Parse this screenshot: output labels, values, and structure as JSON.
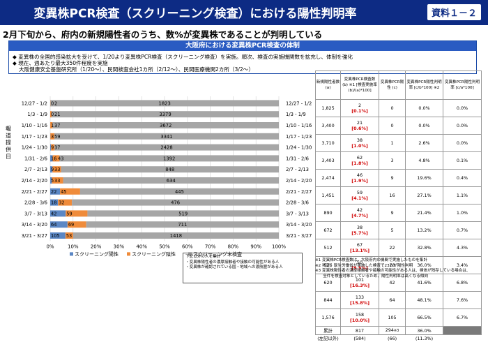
{
  "header": {
    "title": "変異株PCR検査（スクリーニング検査）における陽性判明率",
    "badge": "資料１－２"
  },
  "subheading": "2月下旬から、府内の新規陽性者のうち、数%が変異株であることが判明している",
  "system_box": {
    "title": "大阪府における変異株PCR検査の体制",
    "line1": "◆ 変異株の全国的感染拡大を受けて、1/20より変異株PCR検査（スクリーニング検査）を実施。順次、検査の実施機関数を拡充し、体制を強化",
    "line2": "◆ 現在、週あたり最大350件程度を実施",
    "line3": "大阪健康安全基盤研究所（1/20～）、民間検査会社1カ所（2/12～）、民間医療機関2カ所（3/2～）"
  },
  "side_label": "報道提供日",
  "chart_data": {
    "type": "bar",
    "orientation": "horizontal",
    "stacked": "percent",
    "categories": [
      "12/27 - 1/2",
      "1/3 - 1/9",
      "1/10 - 1/16",
      "1/17 - 1/23",
      "1/24 - 1/30",
      "1/31 - 2/6",
      "2/7 - 2/13",
      "2/14 - 2/20",
      "2/21 - 2/27",
      "2/28 - 3/6",
      "3/7 - 3/13",
      "3/14 - 3/20",
      "3/21 - 3/27"
    ],
    "right_categories": [
      "12/27 - 1/2",
      "1/3 - 1/9",
      "1/10 - 1/16",
      "1/17 - 1/23",
      "1/24 - 1/30",
      "1/31 - 2/6",
      "2/7 - 2/13",
      "2/14 - 2/20",
      "2/21 - 2/27",
      "2/28 - 3/6",
      "3/7 - 3/13",
      "3/14 - 3/20",
      "3/21 - 3/27"
    ],
    "series": [
      {
        "name": "スクリーニング陽性",
        "color": "#5b87c4",
        "values": [
          0,
          0,
          1,
          3,
          9,
          16,
          9,
          5,
          22,
          18,
          42,
          64,
          105
        ]
      },
      {
        "name": "スクリーニング陰性",
        "color": "#ef8b3a",
        "values": [
          2,
          21,
          37,
          59,
          37,
          43,
          33,
          33,
          45,
          32,
          59,
          69,
          53
        ]
      },
      {
        "name": "スクリーニング未検査",
        "color": "#a6a6a6",
        "values": [
          1823,
          3379,
          3672,
          3341,
          2428,
          1392,
          848,
          634,
          445,
          476,
          519,
          711,
          1418
        ]
      }
    ],
    "xlim": [
      0,
      100
    ],
    "xticks": [
      "0%",
      "10%",
      "20%",
      "30%",
      "40%",
      "50%",
      "60%",
      "70%",
      "80%",
      "90%",
      "100%"
    ]
  },
  "table": {
    "headers": [
      "新規陽性者数 (a)",
      "変異株PCR検査数 (b) ※1 [検査実施率(b)/(a)*100]",
      "変異株PCR陽性 (c)",
      "変異株PCR陽性判明率 [c/b*100] ※2",
      "変異株PCR陽性判明率 [c/a*100]"
    ],
    "rows": [
      {
        "a": "1,825",
        "b": "2",
        "b_pct": "[0.1%]",
        "c": "0",
        "cb": "0.0%",
        "ca": "0.0%"
      },
      {
        "a": "3,400",
        "b": "21",
        "b_pct": "[0.6%]",
        "c": "0",
        "cb": "0.0%",
        "ca": "0.0%"
      },
      {
        "a": "3,710",
        "b": "38",
        "b_pct": "[1.0%]",
        "c": "1",
        "cb": "2.6%",
        "ca": "0.0%"
      },
      {
        "a": "3,403",
        "b": "62",
        "b_pct": "[1.8%]",
        "c": "3",
        "cb": "4.8%",
        "ca": "0.1%"
      },
      {
        "a": "2,474",
        "b": "46",
        "b_pct": "[1.9%]",
        "c": "9",
        "cb": "19.6%",
        "ca": "0.4%"
      },
      {
        "a": "1,451",
        "b": "59",
        "b_pct": "[4.1%]",
        "c": "16",
        "cb": "27.1%",
        "ca": "1.1%"
      },
      {
        "a": "890",
        "b": "42",
        "b_pct": "[4.7%]",
        "c": "9",
        "cb": "21.4%",
        "ca": "1.0%"
      },
      {
        "a": "672",
        "b": "38",
        "b_pct": "[5.7%]",
        "c": "5",
        "cb": "13.2%",
        "ca": "0.7%"
      },
      {
        "a": "512",
        "b": "67",
        "b_pct": "[13.1%]",
        "c": "22",
        "cb": "32.8%",
        "ca": "4.3%"
      },
      {
        "a": "526",
        "b": "50",
        "b_pct": "[9.5%]",
        "c": "18",
        "cb": "36.0%",
        "ca": "3.4%"
      },
      {
        "a": "620",
        "b": "101",
        "b_pct": "[16.3%]",
        "c": "42",
        "cb": "41.6%",
        "ca": "6.8%"
      },
      {
        "a": "844",
        "b": "133",
        "b_pct": "[15.8%]",
        "c": "64",
        "cb": "48.1%",
        "ca": "7.6%"
      },
      {
        "a": "1,576",
        "b": "158",
        "b_pct": "[10.0%]",
        "c": "105",
        "cb": "66.5%",
        "ca": "6.7%"
      }
    ],
    "total": {
      "a": "累計",
      "b": "817",
      "c": "294",
      "c_note": "※3",
      "cb": "36.0%"
    },
    "prev": {
      "a": "(左記以外)",
      "b": "(584)",
      "c": "(66)",
      "cb": "(11.3%)"
    }
  },
  "notes_right": [
    "※1 変異株PCR検査数は、大阪府内の機関で実施したものを集計",
    "※2 判定、厚生労働省が実施した検査で23人が陽性判明",
    "※3 変異株陽性者の濃厚接触者や接触の可能性がある人は、検体が残存している場合は、",
    "　　全件を検査対象としているため、陽性判明率は高くなる傾向"
  ],
  "notes_box": [
    "下記以外の人を集計",
    "・変異株陽性者の濃厚接触者や接触の可能性がある人",
    "・変異株が確認されている国・地域への渡航歴がある人"
  ]
}
